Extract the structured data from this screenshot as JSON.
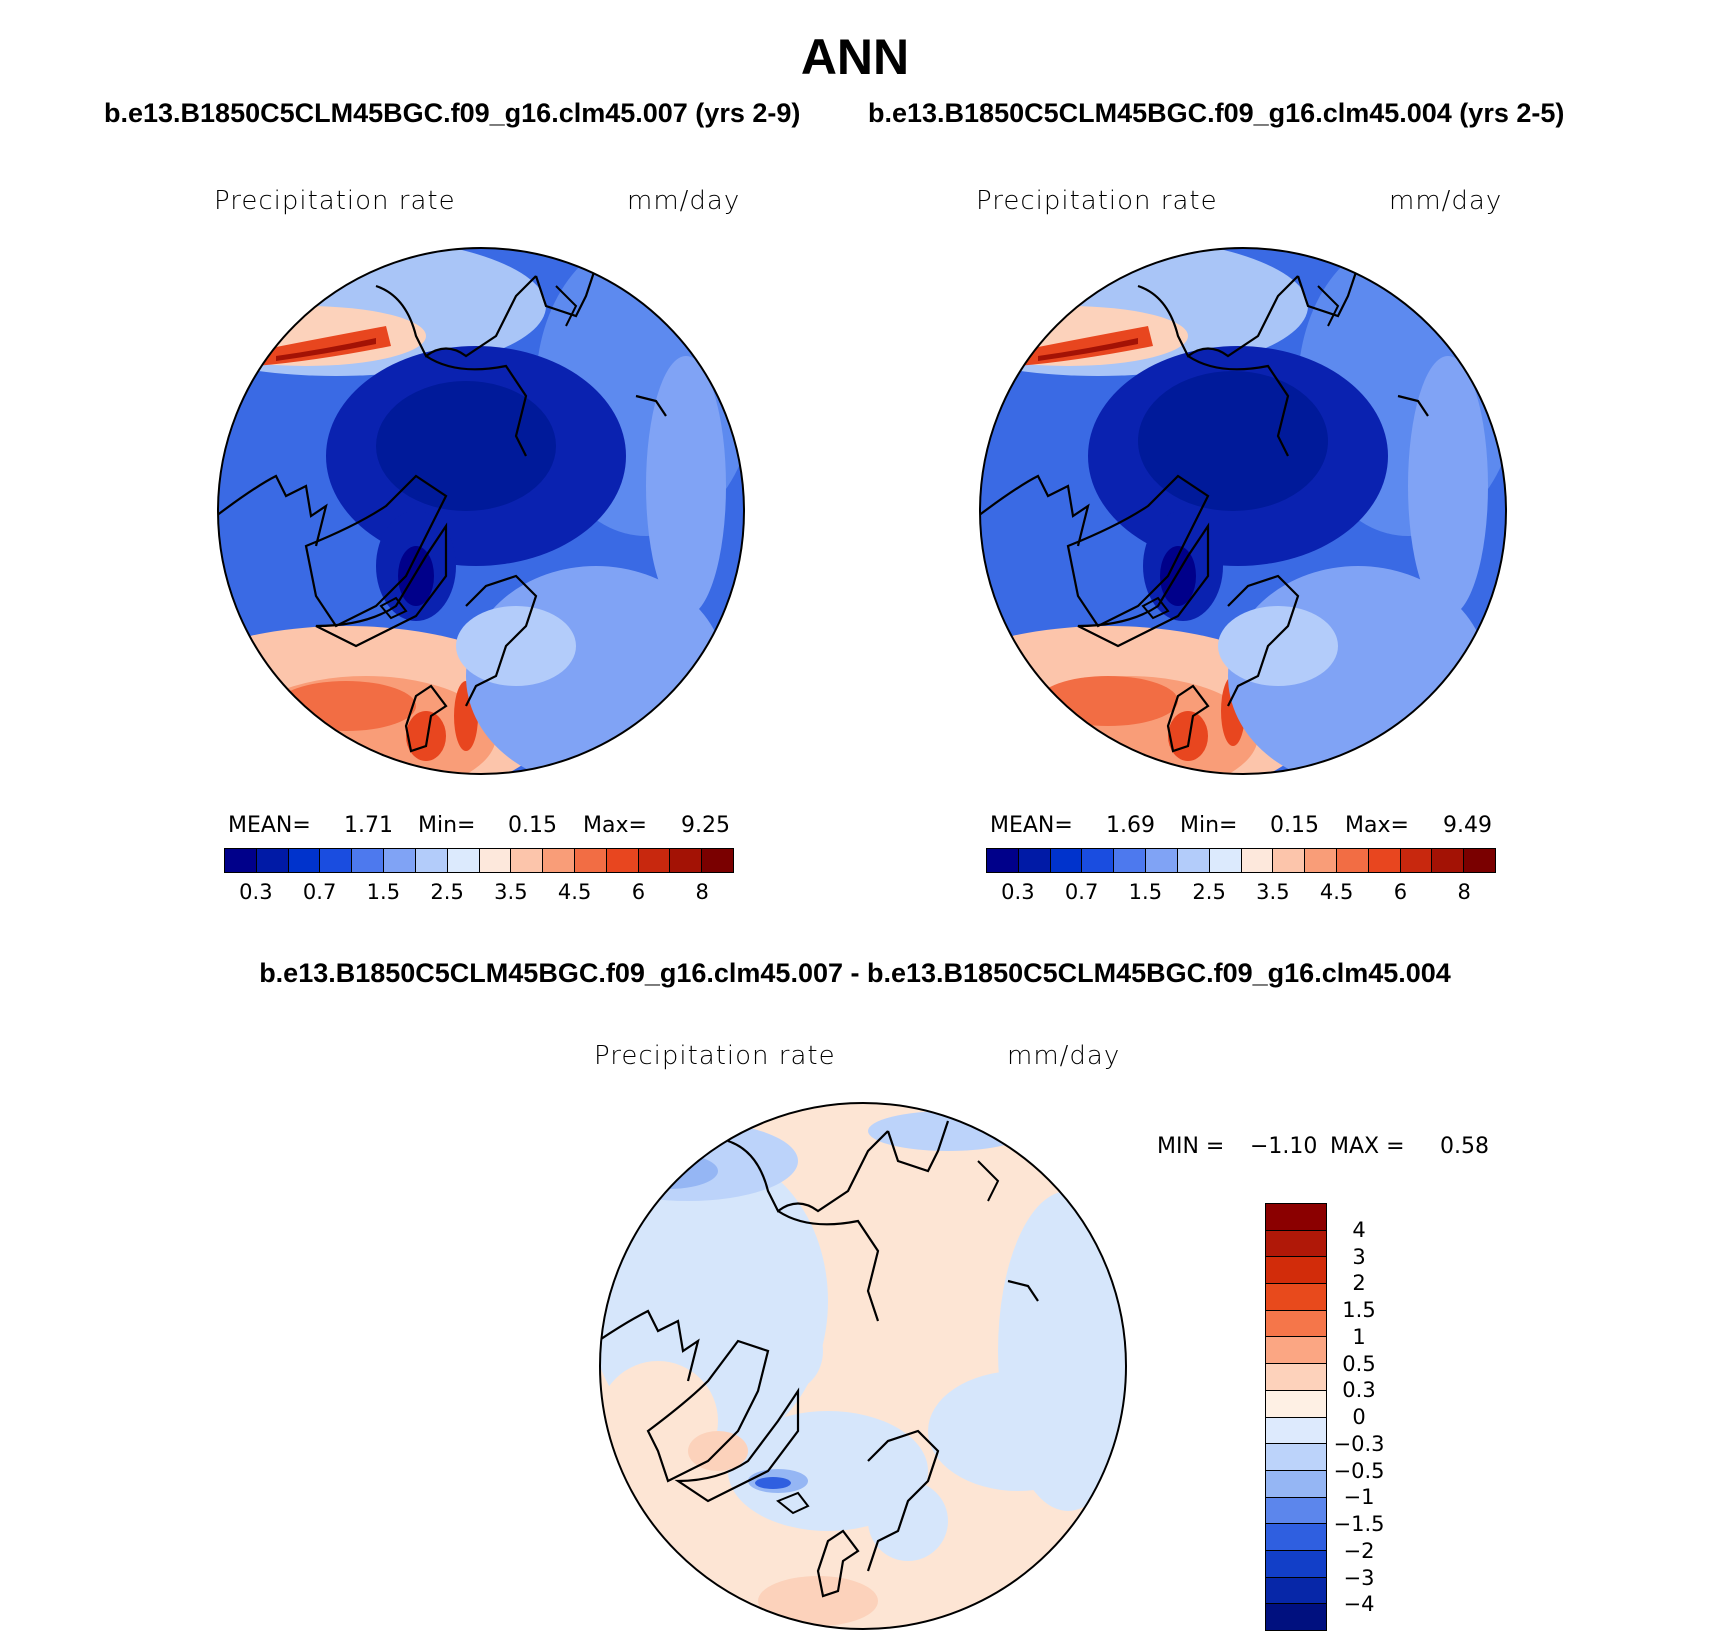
{
  "title": "ANN",
  "panels": [
    {
      "case": "b.e13.B1850C5CLM45BGC.f09_g16.clm45.007 (yrs 2-9)",
      "variable": "Precipitation rate",
      "units": "mm/day",
      "mean_label": "MEAN=",
      "mean": "1.71",
      "min_label": "Min=",
      "min": "0.15",
      "max_label": "Max=",
      "max": "9.25"
    },
    {
      "case": "b.e13.B1850C5CLM45BGC.f09_g16.clm45.004 (yrs 2-5)",
      "variable": "Precipitation rate",
      "units": "mm/day",
      "mean_label": "MEAN=",
      "mean": "1.69",
      "min_label": "Min=",
      "min": "0.15",
      "max_label": "Max=",
      "max": "9.49"
    }
  ],
  "abs_colorbar": {
    "ticks": [
      "0.3",
      "0.7",
      "1.5",
      "2.5",
      "3.5",
      "4.5",
      "6",
      "8"
    ],
    "colors": [
      "#00008a",
      "#001aa6",
      "#0033cc",
      "#1a4de0",
      "#4d79ee",
      "#80a3f5",
      "#b3ccfa",
      "#dceafd",
      "#fde8dc",
      "#fcc5ab",
      "#f99d78",
      "#f26d44",
      "#e8461f",
      "#c8280e",
      "#a31205",
      "#7a0000"
    ]
  },
  "difference": {
    "title": "b.e13.B1850C5CLM45BGC.f09_g16.clm45.007 - b.e13.B1850C5CLM45BGC.f09_g16.clm45.004",
    "variable": "Precipitation rate",
    "units": "mm/day",
    "min_label": "MIN =",
    "min": "−1.10",
    "max_label": "MAX =",
    "max": "0.58",
    "colorbar_ticks": [
      "4",
      "3",
      "2",
      "1.5",
      "1",
      "0.5",
      "0.3",
      "0",
      "−0.3",
      "−0.5",
      "−1",
      "−1.5",
      "−2",
      "−3",
      "−4"
    ],
    "colorbar_colors": [
      "#8b0000",
      "#b01808",
      "#d22c0a",
      "#e84a1c",
      "#f5764a",
      "#fba683",
      "#fdd2bb",
      "#fef0e4",
      "#ddeafd",
      "#bcd3fa",
      "#95b6f4",
      "#5c86ec",
      "#2f5fe0",
      "#123fc8",
      "#0727a8",
      "#00107f"
    ]
  },
  "colors": {
    "ocean_blue": "#2f5fe0",
    "deep_blue": "#0a1fa8",
    "atlantic_red": "#f58a62",
    "diff_pos": "#fde5d4",
    "diff_neg": "#d6e6fb"
  }
}
